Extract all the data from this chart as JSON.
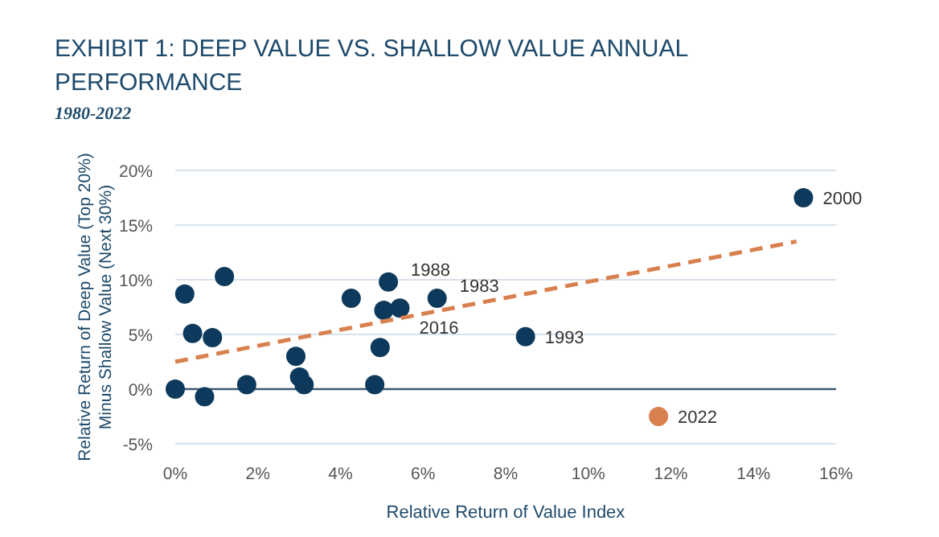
{
  "chart_data": {
    "type": "scatter",
    "title": "EXHIBIT 1: DEEP VALUE VS. SHALLOW VALUE ANNUAL PERFORMANCE",
    "subtitle": "1980-2022",
    "xlabel": "Relative Return of Value Index",
    "ylabel": "Relative Return of Deep Value (Top 20%)\nMinus Shallow Value (Next 30%)",
    "xlim": [
      0,
      16
    ],
    "xticks": [
      {
        "value": 0,
        "label": "0%"
      },
      {
        "value": 2,
        "label": "2%"
      },
      {
        "value": 4,
        "label": "4%"
      },
      {
        "value": 6,
        "label": "6%"
      },
      {
        "value": 8,
        "label": "8%"
      },
      {
        "value": 10,
        "label": "10%"
      },
      {
        "value": 12,
        "label": "12%"
      },
      {
        "value": 14,
        "label": "14%"
      },
      {
        "value": 16,
        "label": "16%"
      }
    ],
    "ylim": [
      -5,
      20
    ],
    "yticks": [
      {
        "value": -5,
        "label": "-5%"
      },
      {
        "value": 0,
        "label": "0%"
      },
      {
        "value": 5,
        "label": "5%"
      },
      {
        "value": 10,
        "label": "10%"
      },
      {
        "value": 15,
        "label": "15%"
      },
      {
        "value": 20,
        "label": "20%"
      }
    ],
    "grid": "y",
    "ref_lines": [
      {
        "axis": "y",
        "value": 0,
        "color": "#3d5870"
      }
    ],
    "series": [
      {
        "marker": "circle",
        "x": [
          0,
          0.23,
          0.42,
          0.71,
          0.9,
          1.19,
          1.73,
          2.92,
          3.01,
          3.12,
          4.26,
          4.83,
          4.96,
          5.05,
          5.16,
          5.44,
          6.34,
          8.48,
          15.21
        ],
        "values": [
          0,
          8.7,
          5.1,
          -0.7,
          4.7,
          10.3,
          0.4,
          3.0,
          1.1,
          0.4,
          8.3,
          0.4,
          3.8,
          7.2,
          9.8,
          7.4,
          8.3,
          4.8,
          17.5
        ],
        "color": "#0d3a5c"
      },
      {
        "marker": "circle",
        "x": [
          11.7
        ],
        "values": [
          -2.5
        ],
        "color": "#d9804f"
      },
      {
        "type": "line",
        "x": [
          0,
          15.04
        ],
        "values": [
          2.5,
          13.5
        ],
        "color": "#d9804f",
        "line_style": "dashed"
      }
    ],
    "annotations": [
      {
        "text": "1988",
        "x": 5.16,
        "y": 9.8
      },
      {
        "text": "1983",
        "x": 6.34,
        "y": 8.3
      },
      {
        "text": "2016",
        "x": 5.44,
        "y": 7.4
      },
      {
        "text": "1993",
        "x": 8.48,
        "y": 4.8
      },
      {
        "text": "2022",
        "x": 11.7,
        "y": -2.5
      },
      {
        "text": "2000",
        "x": 15.21,
        "y": 17.5
      }
    ]
  }
}
